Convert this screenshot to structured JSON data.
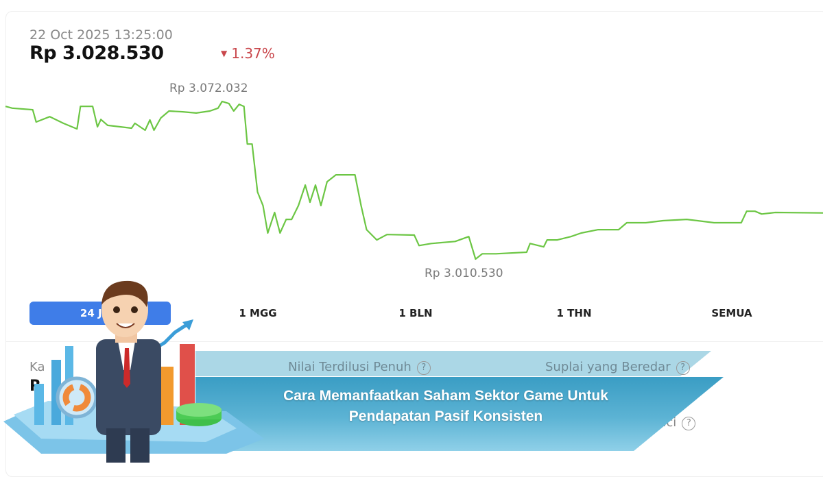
{
  "header": {
    "timestamp": "22 Oct 2025 13:25:00",
    "price": "Rp 3.028.530",
    "change": "1.37%",
    "change_direction": "down",
    "change_color": "#c9474c"
  },
  "chart_data": {
    "type": "line",
    "line_color": "#6cc644",
    "high_label": "Rp 3.072.032",
    "low_label": "Rp 3.010.530",
    "x_unit": "hours (24h range, unlabeled)",
    "points": [
      [
        0,
        3070100
      ],
      [
        0.2,
        3069400
      ],
      [
        0.8,
        3068800
      ],
      [
        0.9,
        3064000
      ],
      [
        1.3,
        3066100
      ],
      [
        1.7,
        3063500
      ],
      [
        2.1,
        3061300
      ],
      [
        2.2,
        3070100
      ],
      [
        2.56,
        3070100
      ],
      [
        2.7,
        3062100
      ],
      [
        2.8,
        3065000
      ],
      [
        3.0,
        3062700
      ],
      [
        3.7,
        3061600
      ],
      [
        3.8,
        3063500
      ],
      [
        4.1,
        3060800
      ],
      [
        4.24,
        3064800
      ],
      [
        4.36,
        3060800
      ],
      [
        4.56,
        3065600
      ],
      [
        4.8,
        3068300
      ],
      [
        5.2,
        3068000
      ],
      [
        5.6,
        3067500
      ],
      [
        6.0,
        3068300
      ],
      [
        6.24,
        3069400
      ],
      [
        6.36,
        3072032
      ],
      [
        6.56,
        3071200
      ],
      [
        6.7,
        3068300
      ],
      [
        6.86,
        3070900
      ],
      [
        7.0,
        3070100
      ],
      [
        7.1,
        3055400
      ],
      [
        7.24,
        3055400
      ],
      [
        7.4,
        3036700
      ],
      [
        7.56,
        3031400
      ],
      [
        7.7,
        3020700
      ],
      [
        7.9,
        3028700
      ],
      [
        8.06,
        3020700
      ],
      [
        8.24,
        3026000
      ],
      [
        8.4,
        3026000
      ],
      [
        8.6,
        3031400
      ],
      [
        8.8,
        3039400
      ],
      [
        8.94,
        3032700
      ],
      [
        9.1,
        3039400
      ],
      [
        9.26,
        3031400
      ],
      [
        9.44,
        3040700
      ],
      [
        9.7,
        3043400
      ],
      [
        10.26,
        3043400
      ],
      [
        10.44,
        3031400
      ],
      [
        10.6,
        3022000
      ],
      [
        10.9,
        3018000
      ],
      [
        11.2,
        3020100
      ],
      [
        12.0,
        3019900
      ],
      [
        12.14,
        3015800
      ],
      [
        12.5,
        3016600
      ],
      [
        13.2,
        3017400
      ],
      [
        13.6,
        3019300
      ],
      [
        13.8,
        3010530
      ],
      [
        14.0,
        3012600
      ],
      [
        14.4,
        3012600
      ],
      [
        15.3,
        3013200
      ],
      [
        15.4,
        3016600
      ],
      [
        15.8,
        3015300
      ],
      [
        15.9,
        3018000
      ],
      [
        16.2,
        3018000
      ],
      [
        16.6,
        3019300
      ],
      [
        16.9,
        3020700
      ],
      [
        17.4,
        3022000
      ],
      [
        18.0,
        3022000
      ],
      [
        18.24,
        3024700
      ],
      [
        18.8,
        3024700
      ],
      [
        19.3,
        3025500
      ],
      [
        20.0,
        3026000
      ],
      [
        20.8,
        3024700
      ],
      [
        21.6,
        3024700
      ],
      [
        21.76,
        3029200
      ],
      [
        22.0,
        3029200
      ],
      [
        22.2,
        3028100
      ],
      [
        22.6,
        3028700
      ],
      [
        24,
        3028530
      ]
    ],
    "grid": false
  },
  "tabs": [
    {
      "label": "24 JAM",
      "active": true
    },
    {
      "label": "1 MGG"
    },
    {
      "label": "1 BLN"
    },
    {
      "label": "1 THN"
    },
    {
      "label": "SEMUA"
    }
  ],
  "stats": {
    "col1_label": "Ka",
    "col1_value": "R",
    "col2_label": "Nilai Terdilusi Penuh",
    "col3_label": "Suplai yang Beredar",
    "row2_label": "nci",
    "help": "?"
  },
  "banner": {
    "line1": "Cara Memanfaatkan Saham Sektor Game Untuk",
    "line2": "Pendapatan Pasif Konsisten"
  },
  "colors": {
    "accent": "#3f7de8",
    "banner": "#4aa8cc"
  }
}
